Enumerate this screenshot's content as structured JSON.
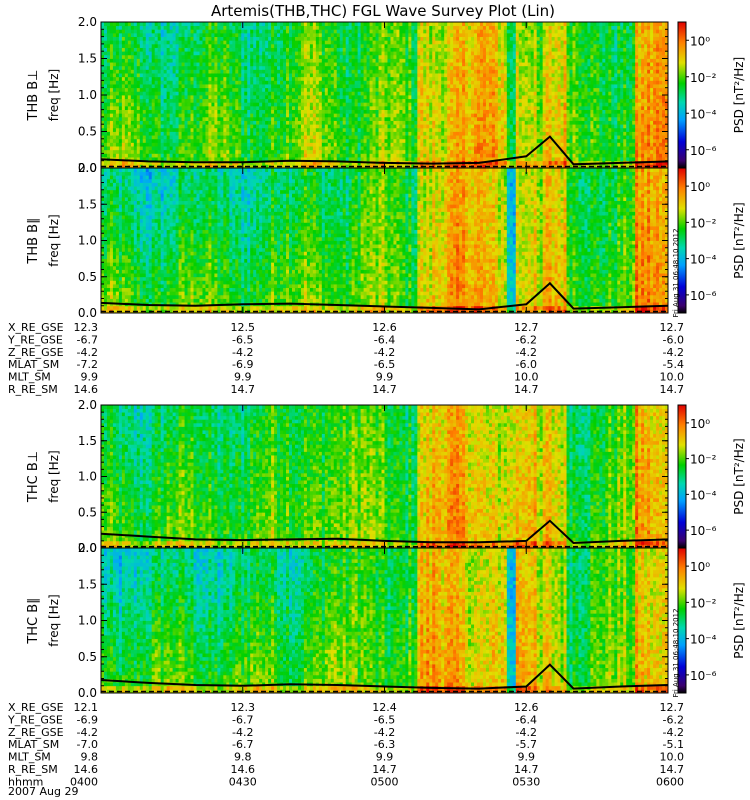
{
  "title": "Artemis(THB,THC) FGL Wave Survey Plot (Lin)",
  "colorbar": {
    "label": "PSD [nT²/Hz]",
    "tick_labels": [
      "10⁰",
      "10⁻²",
      "10⁻⁴",
      "10⁻⁶"
    ],
    "tick_values": [
      1,
      0.01,
      0.0001,
      1e-06
    ],
    "range": [
      1e-07,
      10
    ]
  },
  "stamp": "Fri Aug 31 06:48:10 2012",
  "panels": [
    {
      "name": "THB B⊥",
      "ylabel": "freq [Hz]"
    },
    {
      "name": "THB B∥",
      "ylabel": "freq [Hz]"
    },
    {
      "name": "THC B⊥",
      "ylabel": "freq [Hz]"
    },
    {
      "name": "THC B∥",
      "ylabel": "freq [Hz]"
    }
  ],
  "yticks": [
    "0.0",
    "0.5",
    "1.0",
    "1.5",
    "2.0"
  ],
  "orbit_thb": {
    "rows": [
      {
        "label": "X_RE_GSE",
        "values": [
          "12.3",
          "12.5",
          "12.6",
          "12.7",
          "12.7"
        ]
      },
      {
        "label": "Y_RE_GSE",
        "values": [
          "-6.7",
          "-6.5",
          "-6.4",
          "-6.2",
          "-6.0"
        ]
      },
      {
        "label": "Z_RE_GSE",
        "values": [
          "-4.2",
          "-4.2",
          "-4.2",
          "-4.2",
          "-4.2"
        ]
      },
      {
        "label": "MLAT_SM",
        "values": [
          "-7.2",
          "-6.9",
          "-6.5",
          "-6.0",
          "-5.4"
        ]
      },
      {
        "label": "MLT_SM",
        "values": [
          "9.9",
          "9.9",
          "9.9",
          "10.0",
          "10.0"
        ]
      },
      {
        "label": "R_RE_SM",
        "values": [
          "14.6",
          "14.7",
          "14.7",
          "14.7",
          "14.7"
        ]
      }
    ]
  },
  "orbit_thc": {
    "rows": [
      {
        "label": "X_RE_GSE",
        "values": [
          "12.1",
          "12.3",
          "12.4",
          "12.6",
          "12.7"
        ]
      },
      {
        "label": "Y_RE_GSE",
        "values": [
          "-6.9",
          "-6.7",
          "-6.5",
          "-6.4",
          "-6.2"
        ]
      },
      {
        "label": "Z_RE_GSE",
        "values": [
          "-4.2",
          "-4.2",
          "-4.2",
          "-4.2",
          "-4.2"
        ]
      },
      {
        "label": "MLAT_SM",
        "values": [
          "-7.0",
          "-6.7",
          "-6.3",
          "-5.7",
          "-5.1"
        ]
      },
      {
        "label": "MLT_SM",
        "values": [
          "9.8",
          "9.8",
          "9.9",
          "9.9",
          "10.0"
        ]
      },
      {
        "label": "R_RE_SM",
        "values": [
          "14.6",
          "14.6",
          "14.7",
          "14.7",
          "14.7"
        ]
      },
      {
        "label": "hhmm",
        "values": [
          "0400",
          "0430",
          "0500",
          "0530",
          "0600"
        ]
      }
    ]
  },
  "date_label": "2007 Aug 29",
  "chart_data": {
    "type": "heatmap",
    "title": "Artemis(THB,THC) FGL Wave Survey Plot (Lin)",
    "x_label": "hhmm",
    "x_range": [
      "0400",
      "0600"
    ],
    "x_ticks": [
      "0400",
      "0430",
      "0500",
      "0530",
      "0600"
    ],
    "y_label": "freq [Hz]",
    "y_range": [
      0,
      2
    ],
    "z_label": "PSD [nT²/Hz]",
    "z_scale": "log",
    "z_range": [
      1e-07,
      10
    ],
    "series": [
      {
        "name": "THB B⊥",
        "x_hhmm": [
          "0400",
          "0410",
          "0420",
          "0430",
          "0440",
          "0450",
          "0500",
          "0510",
          "0520",
          "0530",
          "0535",
          "0540",
          "0550",
          "0600"
        ],
        "y": [
          0.12,
          0.09,
          0.08,
          0.08,
          0.1,
          0.09,
          0.07,
          0.06,
          0.07,
          0.16,
          0.43,
          0.05,
          0.07,
          0.09
        ]
      },
      {
        "name": "THB B∥",
        "x_hhmm": [
          "0400",
          "0410",
          "0420",
          "0430",
          "0440",
          "0450",
          "0500",
          "0510",
          "0520",
          "0530",
          "0535",
          "0540",
          "0550",
          "0600"
        ],
        "y": [
          0.14,
          0.11,
          0.1,
          0.12,
          0.13,
          0.11,
          0.09,
          0.07,
          0.05,
          0.12,
          0.41,
          0.06,
          0.08,
          0.1
        ]
      },
      {
        "name": "THC B⊥",
        "x_hhmm": [
          "0400",
          "0410",
          "0420",
          "0430",
          "0440",
          "0450",
          "0500",
          "0510",
          "0520",
          "0530",
          "0535",
          "0540",
          "0550",
          "0600"
        ],
        "y": [
          0.2,
          0.16,
          0.12,
          0.11,
          0.12,
          0.13,
          0.1,
          0.08,
          0.08,
          0.1,
          0.38,
          0.07,
          0.1,
          0.12
        ]
      },
      {
        "name": "THC B∥",
        "x_hhmm": [
          "0400",
          "0410",
          "0420",
          "0430",
          "0440",
          "0450",
          "0500",
          "0510",
          "0520",
          "0530",
          "0535",
          "0540",
          "0550",
          "0600"
        ],
        "y": [
          0.18,
          0.14,
          0.11,
          0.1,
          0.12,
          0.11,
          0.09,
          0.07,
          0.06,
          0.09,
          0.39,
          0.06,
          0.09,
          0.11
        ]
      }
    ],
    "grid": false,
    "colormap": "rainbow"
  }
}
